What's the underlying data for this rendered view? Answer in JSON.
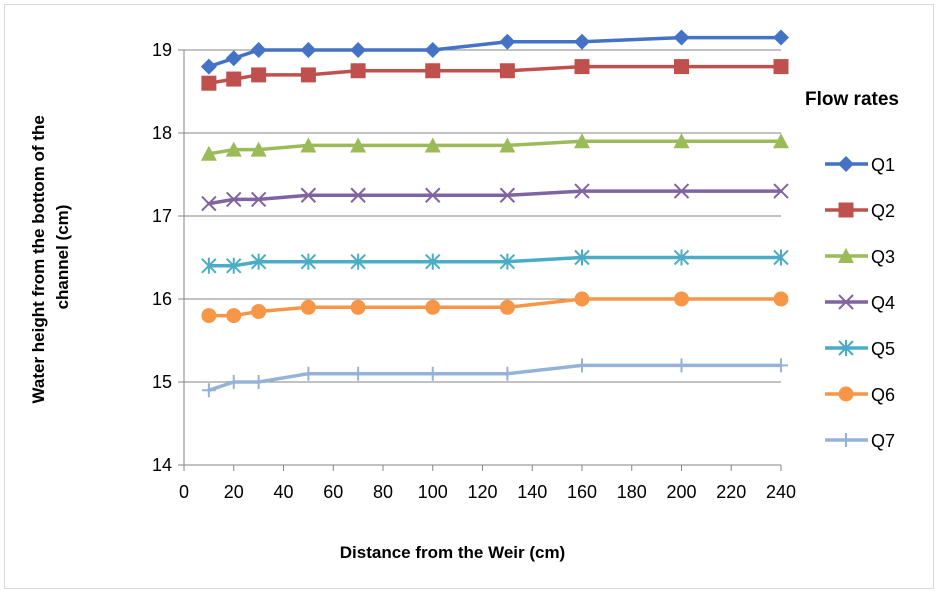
{
  "chart_data": {
    "type": "line",
    "title": "",
    "xlabel": "Distance from the Weir (cm)",
    "ylabel_lines": [
      "Water height from the bottom of the",
      "channel (cm)"
    ],
    "xlim": [
      0,
      240
    ],
    "ylim": [
      14,
      19
    ],
    "xticks": [
      0,
      20,
      40,
      60,
      80,
      100,
      120,
      140,
      160,
      180,
      200,
      220,
      240
    ],
    "yticks": [
      14,
      15,
      16,
      17,
      18,
      19
    ],
    "grid": "horizontal",
    "legend_position": "right",
    "legend_title": "Flow rates",
    "x": [
      10,
      20,
      30,
      50,
      70,
      100,
      130,
      160,
      200,
      240
    ],
    "series": [
      {
        "name": "Q1",
        "color": "#4472c4",
        "marker": "diamond",
        "values": [
          18.8,
          18.9,
          19.0,
          19.0,
          19.0,
          19.0,
          19.1,
          19.1,
          19.15,
          19.15
        ]
      },
      {
        "name": "Q2",
        "color": "#c0504d",
        "marker": "square",
        "values": [
          18.6,
          18.65,
          18.7,
          18.7,
          18.75,
          18.75,
          18.75,
          18.8,
          18.8,
          18.8
        ]
      },
      {
        "name": "Q3",
        "color": "#9bbb59",
        "marker": "triangle",
        "values": [
          17.75,
          17.8,
          17.8,
          17.85,
          17.85,
          17.85,
          17.85,
          17.9,
          17.9,
          17.9
        ]
      },
      {
        "name": "Q4",
        "color": "#8064a2",
        "marker": "x",
        "values": [
          17.15,
          17.2,
          17.2,
          17.25,
          17.25,
          17.25,
          17.25,
          17.3,
          17.3,
          17.3
        ]
      },
      {
        "name": "Q5",
        "color": "#4bacc6",
        "marker": "asterisk",
        "values": [
          16.4,
          16.4,
          16.45,
          16.45,
          16.45,
          16.45,
          16.45,
          16.5,
          16.5,
          16.5
        ]
      },
      {
        "name": "Q6",
        "color": "#f79646",
        "marker": "circle",
        "values": [
          15.8,
          15.8,
          15.85,
          15.9,
          15.9,
          15.9,
          15.9,
          16.0,
          16.0,
          16.0
        ]
      },
      {
        "name": "Q7",
        "color": "#95b3d7",
        "marker": "plus",
        "values": [
          14.9,
          15.0,
          15.0,
          15.1,
          15.1,
          15.1,
          15.1,
          15.2,
          15.2,
          15.2
        ]
      }
    ]
  }
}
